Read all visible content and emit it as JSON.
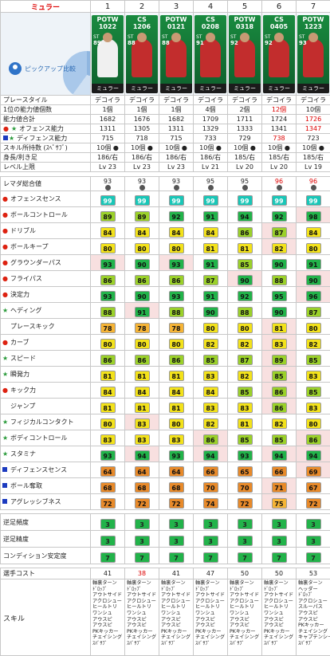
{
  "header": {
    "player_name": "ミュラー",
    "columns": [
      "1",
      "2",
      "3",
      "4",
      "5",
      "6",
      "7"
    ]
  },
  "pickup_label": "ピックアップ比較",
  "cards": [
    {
      "type": "POTW",
      "date": "1022",
      "pos": "ST",
      "ovr": "89",
      "name": "ミュラー",
      "kit": "white"
    },
    {
      "type": "CS",
      "date": "1206",
      "pos": "ST",
      "ovr": "88",
      "name": "ミュラー",
      "kit": "red"
    },
    {
      "type": "POTW",
      "date": "0121",
      "pos": "ST",
      "ovr": "88",
      "name": "ミュラー",
      "kit": "red"
    },
    {
      "type": "CS",
      "date": "0208",
      "pos": "ST",
      "ovr": "91",
      "name": "ミュラー",
      "kit": "red"
    },
    {
      "type": "POTW",
      "date": "0318",
      "pos": "ST",
      "ovr": "92",
      "name": "ミュラー",
      "kit": "red"
    },
    {
      "type": "CS",
      "date": "0405",
      "pos": "ST",
      "ovr": "92",
      "name": "ミュラー",
      "kit": "red"
    },
    {
      "type": "POTW",
      "date": "1223",
      "pos": "ST",
      "ovr": "93",
      "name": "ミュラー",
      "kit": "red"
    }
  ],
  "info_rows": [
    {
      "label": "プレースタイル",
      "values": [
        "デコイラ",
        "デコイラ",
        "デコイラ",
        "デコイラ",
        "デコイラ",
        "デコイラ",
        "デコイラ"
      ],
      "red": []
    },
    {
      "label": "1位の能力値個数",
      "values": [
        "1個",
        "1個",
        "1個",
        "4個",
        "2個",
        "12個",
        "10個"
      ],
      "red": [
        5
      ]
    },
    {
      "label": "能力値合計",
      "values": [
        "1682",
        "1676",
        "1682",
        "1709",
        "1711",
        "1724",
        "1726"
      ],
      "red": [
        6
      ]
    },
    {
      "label": "オフェンス能力",
      "values": [
        "1311",
        "1305",
        "1311",
        "1329",
        "1333",
        "1341",
        "1347"
      ],
      "red": [
        6
      ]
    },
    {
      "label": "ディフェンス能力",
      "values": [
        "715",
        "718",
        "715",
        "733",
        "729",
        "738",
        "723"
      ],
      "red": [
        5
      ]
    },
    {
      "label": "スキル所持数 (ｽﾍﾟｻﾌﾞ)",
      "values": [
        "10個 ●",
        "10個 ●",
        "10個 ●",
        "10個 ●",
        "10個 ●",
        "10個 ●",
        "10個 ●"
      ],
      "red": []
    },
    {
      "label": "身長/利き足",
      "values": [
        "186/右",
        "186/右",
        "186/右",
        "186/右",
        "185/右",
        "185/右",
        "185/右"
      ],
      "red": []
    },
    {
      "label": "レベル上限",
      "values": [
        "Lv 23",
        "Lv 23",
        "Lv 23",
        "Lv 21",
        "Lv 20",
        "Lv 20",
        "Lv 19"
      ],
      "red": []
    }
  ],
  "remake": {
    "label": "レマダ総合値",
    "values": [
      "93",
      "93",
      "93",
      "95",
      "95",
      "96",
      "96"
    ],
    "red": [
      5,
      6
    ]
  },
  "stats": [
    {
      "label": "オフェンスセンス",
      "mark": "dot-red",
      "values": [
        99,
        99,
        99,
        99,
        99,
        99,
        99
      ]
    },
    {
      "label": "ボールコントロール",
      "mark": "dot-red",
      "values": [
        89,
        89,
        92,
        91,
        94,
        92,
        98
      ]
    },
    {
      "label": "ドリブル",
      "mark": "dot-red",
      "values": [
        84,
        84,
        84,
        84,
        86,
        87,
        84
      ]
    },
    {
      "label": "ボールキープ",
      "mark": "dot-red",
      "values": [
        80,
        80,
        80,
        81,
        81,
        82,
        80
      ]
    },
    {
      "label": "グラウンダーパス",
      "mark": "dot-red",
      "values": [
        93,
        90,
        93,
        91,
        85,
        90,
        91
      ]
    },
    {
      "label": "フライパス",
      "mark": "dot-red",
      "values": [
        86,
        86,
        86,
        87,
        90,
        88,
        90
      ]
    },
    {
      "label": "決定力",
      "mark": "dot-red",
      "values": [
        93,
        90,
        93,
        91,
        92,
        95,
        96
      ]
    },
    {
      "label": "ヘディング",
      "mark": "star-green",
      "values": [
        88,
        91,
        88,
        90,
        88,
        90,
        87
      ]
    },
    {
      "label": "プレースキック",
      "mark": "none",
      "values": [
        78,
        78,
        78,
        80,
        80,
        81,
        80
      ]
    },
    {
      "label": "カーブ",
      "mark": "dot-red",
      "values": [
        80,
        80,
        80,
        82,
        82,
        83,
        82
      ]
    },
    {
      "label": "スピード",
      "mark": "star-green",
      "values": [
        86,
        86,
        86,
        85,
        87,
        89,
        85
      ]
    },
    {
      "label": "瞬発力",
      "mark": "star-green",
      "values": [
        81,
        81,
        81,
        83,
        82,
        85,
        83
      ]
    },
    {
      "label": "キック力",
      "mark": "dot-red",
      "values": [
        84,
        84,
        84,
        84,
        85,
        86,
        85
      ]
    },
    {
      "label": "ジャンプ",
      "mark": "none",
      "values": [
        81,
        81,
        81,
        83,
        83,
        86,
        83
      ]
    },
    {
      "label": "フィジカルコンタクト",
      "mark": "star-green",
      "values": [
        80,
        83,
        80,
        82,
        81,
        82,
        80
      ]
    },
    {
      "label": "ボディコントロール",
      "mark": "star-green",
      "values": [
        83,
        83,
        83,
        86,
        85,
        85,
        86
      ]
    },
    {
      "label": "スタミナ",
      "mark": "star-green",
      "values": [
        93,
        94,
        93,
        94,
        93,
        94,
        94
      ]
    },
    {
      "label": "ディフェンスセンス",
      "mark": "sq-blue",
      "values": [
        64,
        64,
        64,
        66,
        65,
        66,
        69
      ]
    },
    {
      "label": "ボール奪取",
      "mark": "sq-blue",
      "values": [
        68,
        68,
        68,
        70,
        70,
        71,
        67
      ]
    },
    {
      "label": "アグレッシブネス",
      "mark": "sq-blue",
      "values": [
        72,
        72,
        72,
        74,
        72,
        75,
        72
      ]
    }
  ],
  "low_rows": [
    {
      "label": "逆足頻度",
      "values": [
        "3",
        "3",
        "3",
        "3",
        "3",
        "3",
        "3"
      ]
    },
    {
      "label": "逆足精度",
      "values": [
        "3",
        "3",
        "3",
        "3",
        "3",
        "3",
        "3"
      ]
    },
    {
      "label": "コンディション安定度",
      "values": [
        "7",
        "7",
        "7",
        "7",
        "7",
        "7",
        "7"
      ]
    }
  ],
  "cost": {
    "label": "選手コスト",
    "values": [
      "41",
      "38",
      "41",
      "47",
      "50",
      "50",
      "53"
    ],
    "red": [
      1
    ]
  },
  "skills": {
    "label": "スキル",
    "lists": [
      "軸裏ターン\nﾄﾞﾛｯﾌﾟ\nアウトサイド\nアクロシュー\nヒールトリ\nワンシュ\nアウスピ\nアウスピ\nPKキッカー\nチェイシング\nｽﾊﾞｻﾌﾞ",
      "軸裏ターン\nﾄﾞﾛｯﾌﾟ\nアウトサイド\nアクロシュー\nヒールトリ\nワンシュ\nアウスピ\nアウスピ\nPKキッカー\nチェイシング\nｽﾊﾞｻﾌﾞ",
      "軸裏ターン\nﾄﾞﾛｯﾌﾟ\nアウトサイド\nアクロシュー\nヒールトリ\nワンシュ\nアウスピ\nアウスピ\nPKキッカー\nチェイシング\nｽﾊﾞｻﾌﾞ",
      "軸裏ターン\nﾄﾞﾛｯﾌﾟ\nアウトサイド\nアクロシュー\nヒールトリ\nワンシュ\nアウスピ\nアウスピ\nPKキッカー\nチェイシング\nｽﾊﾞｻﾌﾞ",
      "軸裏ターン\nﾄﾞﾛｯﾌﾟ\nアウトサイド\nアクロシュー\nヒールトリ\nワンシュ\nアウスピ\nアウスピ\nPKキッカー\nチェイシング\nｽﾊﾞｻﾌﾞ",
      "軸裏ターン\nﾄﾞﾛｯﾌﾟ\nアウトサイド\nアクロシュー\nヒールトリ\nワンシュ\nアウスピ\nアウスピ\nPKキッカー\nチェイシング\nｽﾊﾞｻﾌﾞ",
      "軸裏ターン\nヘッダー\nﾄﾞﾛｯﾌﾟ\nアクロシュー\nスルーパス\nアウスピ\nアウスピ\nPKキッカー\nチェイシング\nキャプテンシー\nｽﾊﾞｻﾌﾞ"
    ]
  },
  "colors": {
    "card_green": "#198a3f",
    "tier_99": "#19c7b8",
    "tier_90": "#22b34a",
    "tier_85": "#9bd12a",
    "tier_80": "#f3e21b",
    "tier_75": "#f6b436",
    "tier_low": "#e88a2a",
    "accent_red": "#dd0000",
    "stat_highlight": "#f8e0e0"
  }
}
